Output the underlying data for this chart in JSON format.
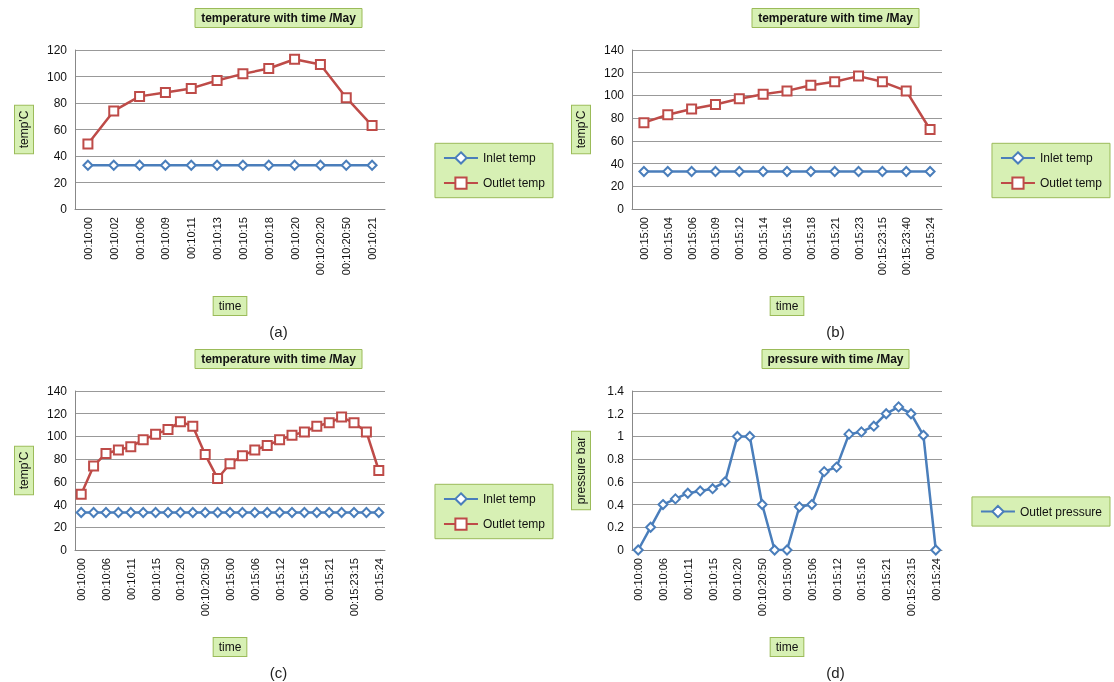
{
  "chart_data": [
    {
      "type": "line",
      "title": "temperature with time /May",
      "xlabel": "time",
      "ylabel": "temp'C",
      "annotations": [
        "(a)"
      ],
      "categories": [
        "00:10:00",
        "00:10:02",
        "00:10:06",
        "00:10:09",
        "00:10:11",
        "00:10:13",
        "00:10:15",
        "00:10:18",
        "00:10:20",
        "00:10:20:20",
        "00:10:20:50",
        "00:10:21"
      ],
      "series": [
        {
          "name": "Inlet temp",
          "color": "#4a7ebb",
          "marker": "diamond",
          "values": [
            33,
            33,
            33,
            33,
            33,
            33,
            33,
            33,
            33,
            33,
            33,
            33
          ]
        },
        {
          "name": "Outlet temp",
          "color": "#be4b48",
          "marker": "square",
          "values": [
            49,
            74,
            85,
            88,
            91,
            97,
            102,
            106,
            113,
            109,
            84,
            63
          ]
        }
      ],
      "ylim": [
        0,
        120
      ],
      "yticks": [
        0,
        20,
        40,
        60,
        80,
        100,
        120
      ],
      "grid": "y",
      "legend": "right"
    },
    {
      "type": "line",
      "title": "temperature with time /May",
      "xlabel": "time",
      "ylabel": "temp'C",
      "annotations": [
        "(b)"
      ],
      "categories": [
        "00:15:00",
        "00:15:04",
        "00:15:06",
        "00:15:09",
        "00:15:12",
        "00:15:14",
        "00:15:16",
        "00:15:18",
        "00:15:21",
        "00:15:23",
        "00:15:23:15",
        "00:15:23:40",
        "00:15:24"
      ],
      "series": [
        {
          "name": "Inlet temp",
          "color": "#4a7ebb",
          "marker": "diamond",
          "values": [
            33,
            33,
            33,
            33,
            33,
            33,
            33,
            33,
            33,
            33,
            33,
            33,
            33
          ]
        },
        {
          "name": "Outlet temp",
          "color": "#be4b48",
          "marker": "square",
          "values": [
            76,
            83,
            88,
            92,
            97,
            101,
            104,
            109,
            112,
            117,
            112,
            104,
            70
          ]
        }
      ],
      "ylim": [
        0,
        140
      ],
      "yticks": [
        0,
        20,
        40,
        60,
        80,
        100,
        120,
        140
      ],
      "grid": "y",
      "legend": "right"
    },
    {
      "type": "line",
      "title": "temperature with time /May",
      "xlabel": "time",
      "ylabel": "temp'C",
      "annotations": [
        "(c)"
      ],
      "categories": [
        "00:10:00",
        null,
        "00:10:06",
        null,
        "00:10:11",
        null,
        "00:10:15",
        null,
        "00:10:20",
        null,
        "00:10:20:50",
        null,
        "00:15:00",
        null,
        "00:15:06",
        null,
        "00:15:12",
        null,
        "00:15:16",
        null,
        "00:15:21",
        null,
        "00:15:23:15",
        null,
        "00:15:24"
      ],
      "series": [
        {
          "name": "Inlet temp",
          "color": "#4a7ebb",
          "marker": "diamond",
          "values": [
            33,
            33,
            33,
            33,
            33,
            33,
            33,
            33,
            33,
            33,
            33,
            33,
            33,
            33,
            33,
            33,
            33,
            33,
            33,
            33,
            33,
            33,
            33,
            33,
            33
          ]
        },
        {
          "name": "Outlet temp",
          "color": "#be4b48",
          "marker": "square",
          "values": [
            49,
            74,
            85,
            88,
            91,
            97,
            102,
            106,
            113,
            109,
            84,
            63,
            76,
            83,
            88,
            92,
            97,
            101,
            104,
            109,
            112,
            117,
            112,
            104,
            70
          ]
        }
      ],
      "ylim": [
        0,
        140
      ],
      "yticks": [
        0,
        20,
        40,
        60,
        80,
        100,
        120,
        140
      ],
      "grid": "y",
      "legend": "right"
    },
    {
      "type": "line",
      "title": "pressure with time /May",
      "xlabel": "time",
      "ylabel": "pressure bar",
      "annotations": [
        "(d)"
      ],
      "categories": [
        "00:10:00",
        null,
        "00:10:06",
        null,
        "00:10:11",
        null,
        "00:10:15",
        null,
        "00:10:20",
        null,
        "00:10:20:50",
        null,
        "00:15:00",
        null,
        "00:15:06",
        null,
        "00:15:12",
        null,
        "00:15:16",
        null,
        "00:15:21",
        null,
        "00:15:23:15",
        null,
        "00:15:24"
      ],
      "series": [
        {
          "name": "Outlet pressure",
          "color": "#4a7ebb",
          "marker": "diamond",
          "values": [
            0,
            0.2,
            0.4,
            0.45,
            0.5,
            0.52,
            0.54,
            0.6,
            1,
            1,
            0.4,
            0,
            0,
            0.38,
            0.4,
            0.69,
            0.73,
            1.02,
            1.04,
            1.09,
            1.2,
            1.26,
            1.2,
            1.01,
            0
          ]
        }
      ],
      "ylim": [
        0,
        1.4
      ],
      "yticks": [
        0,
        0.2,
        0.4,
        0.6,
        0.8,
        1,
        1.2,
        1.4
      ],
      "grid": "y",
      "legend": "right"
    }
  ]
}
